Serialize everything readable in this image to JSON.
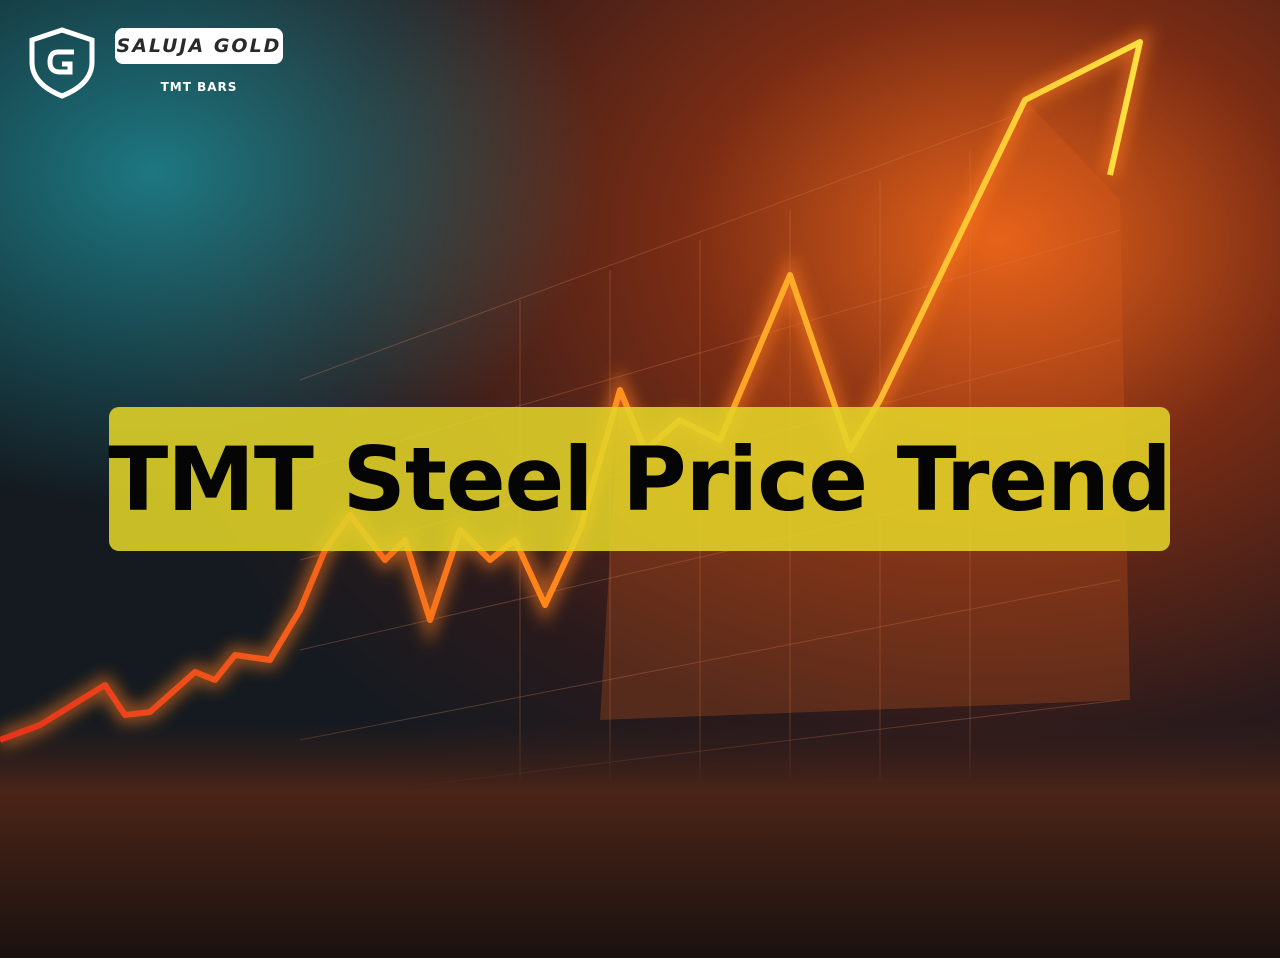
{
  "logo": {
    "brand": "SALUJA GOLD",
    "tagline": "TMT BARS"
  },
  "banner": {
    "title": "TMT Steel Price Trend"
  }
}
